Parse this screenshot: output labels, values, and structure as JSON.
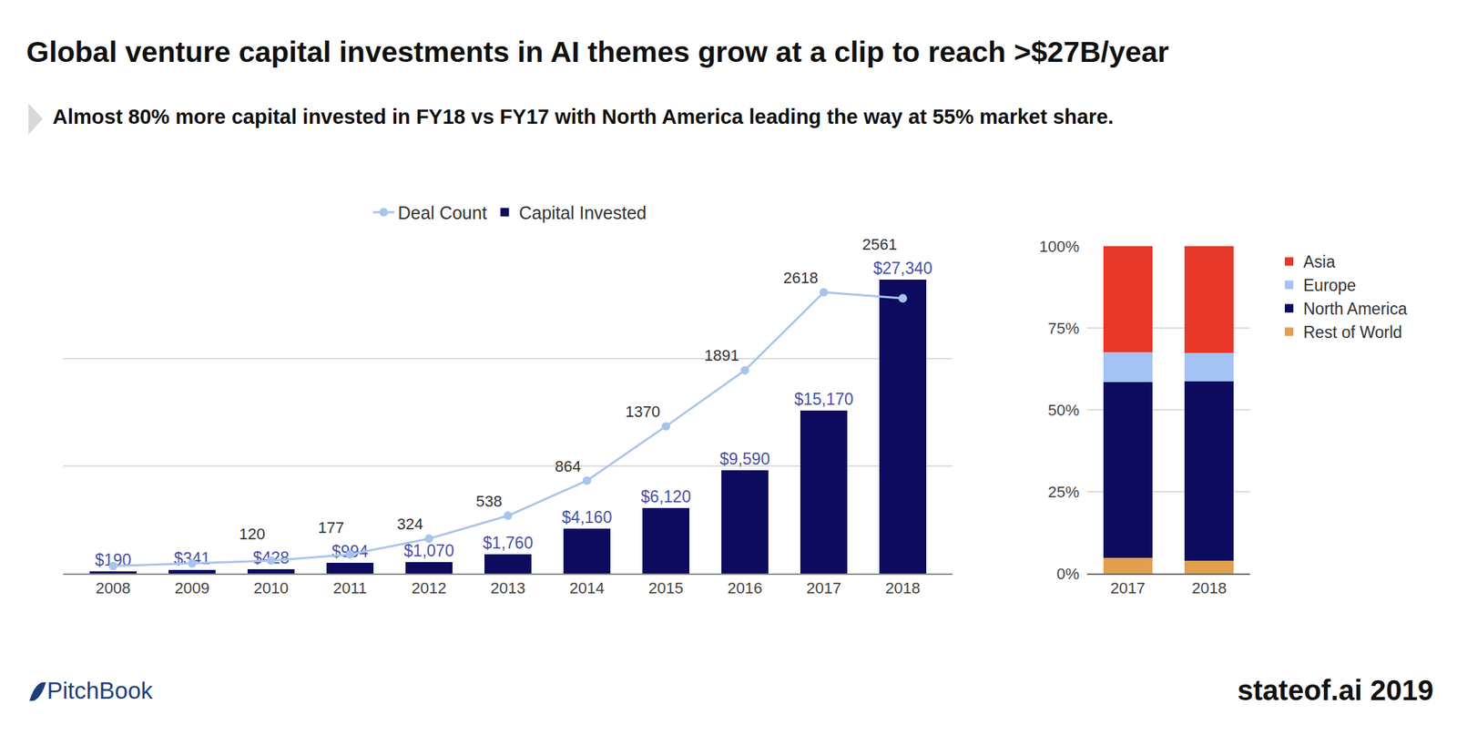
{
  "chart_data": [
    {
      "type": "bar",
      "title": "Global venture capital investments in AI themes grow at a clip to reach >$27B/year",
      "subtitle": "Almost 80% more capital invested in FY18 vs FY17 with North America leading the way at 55% market share.",
      "categories": [
        "2008",
        "2009",
        "2010",
        "2011",
        "2012",
        "2013",
        "2014",
        "2015",
        "2016",
        "2017",
        "2018"
      ],
      "series": [
        {
          "name": "Capital Invested",
          "type": "bar",
          "color": "#0c0b5e",
          "values": [
            190,
            341,
            428,
            994,
            1070,
            1760,
            4160,
            6120,
            9590,
            15170,
            27340
          ],
          "value_labels": [
            "$190",
            "$341",
            "$428",
            "$994",
            "$1,070",
            "$1,760",
            "$4,160",
            "$6,120",
            "$9,590",
            "$15,170",
            "$27,340"
          ]
        },
        {
          "name": "Deal Count",
          "type": "line",
          "axis": "y2",
          "color": "#a9c4ec",
          "marker": "circle",
          "values": [
            70,
            95,
            120,
            177,
            324,
            538,
            864,
            1370,
            1891,
            2618,
            2561
          ],
          "value_labels": [
            null,
            null,
            "120",
            "177",
            "324",
            "538",
            "864",
            "1370",
            "1891",
            "2618",
            "2561"
          ]
        }
      ],
      "ylim": [
        0,
        30000
      ],
      "yticks": [
        0,
        10000,
        20000,
        30000
      ],
      "y2lim": [
        0,
        3000
      ],
      "y2ticks": [
        0,
        1000,
        2000,
        3000
      ],
      "grid": true,
      "tick_labels": "x",
      "data_labels": true,
      "legend": "top"
    },
    {
      "type": "bar",
      "stacked": true,
      "categories": [
        "2017",
        "2018"
      ],
      "series": [
        {
          "name": "Rest of World",
          "color": "#e0a050",
          "values": [
            4.8,
            4.0
          ]
        },
        {
          "name": "North America",
          "color": "#0c0b5e",
          "values": [
            53.7,
            54.8
          ]
        },
        {
          "name": "Europe",
          "color": "#a4c2f4",
          "values": [
            9.1,
            8.5
          ]
        },
        {
          "name": "Asia",
          "color": "#e8382a",
          "values": [
            32.4,
            32.7
          ]
        }
      ],
      "ylim": [
        0,
        100
      ],
      "yticks": [
        {
          "value": 0,
          "label": "0%"
        },
        {
          "value": 25,
          "label": "25%"
        },
        {
          "value": 50,
          "label": "50%"
        },
        {
          "value": 75,
          "label": "75%"
        },
        {
          "value": 100,
          "label": "100%"
        }
      ],
      "grid": true,
      "legend": "right"
    }
  ],
  "logo": "PitchBook",
  "footer": "stateof.ai 2019"
}
